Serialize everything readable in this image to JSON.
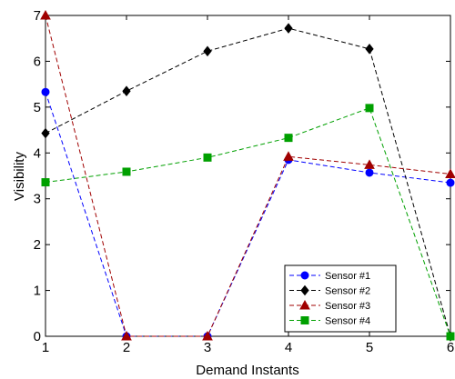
{
  "chart_data": {
    "type": "line",
    "title": "",
    "xlabel": "Demand Instants",
    "ylabel": "Visibility",
    "xlim": [
      1,
      6
    ],
    "ylim": [
      0,
      7
    ],
    "x_ticks": [
      1,
      2,
      3,
      4,
      5,
      6
    ],
    "y_ticks": [
      0,
      1,
      2,
      3,
      4,
      5,
      6,
      7
    ],
    "grid": false,
    "legend_position": "bottom-right",
    "x": [
      1,
      2,
      3,
      4,
      5,
      6
    ],
    "series": [
      {
        "name": "Sensor #1",
        "values": [
          5.33,
          0,
          0,
          3.85,
          3.57,
          3.35
        ],
        "color": "#0000ff",
        "marker": "circle"
      },
      {
        "name": "Sensor #2",
        "values": [
          4.43,
          5.35,
          6.22,
          6.72,
          6.27,
          0
        ],
        "color": "#000000",
        "marker": "diamond"
      },
      {
        "name": "Sensor #3",
        "values": [
          7.0,
          0,
          0,
          3.92,
          3.74,
          3.54
        ],
        "color": "#a00000",
        "marker": "triangle"
      },
      {
        "name": "Sensor #4",
        "values": [
          3.36,
          3.59,
          3.9,
          4.33,
          4.98,
          0
        ],
        "color": "#00a000",
        "marker": "square"
      }
    ]
  }
}
